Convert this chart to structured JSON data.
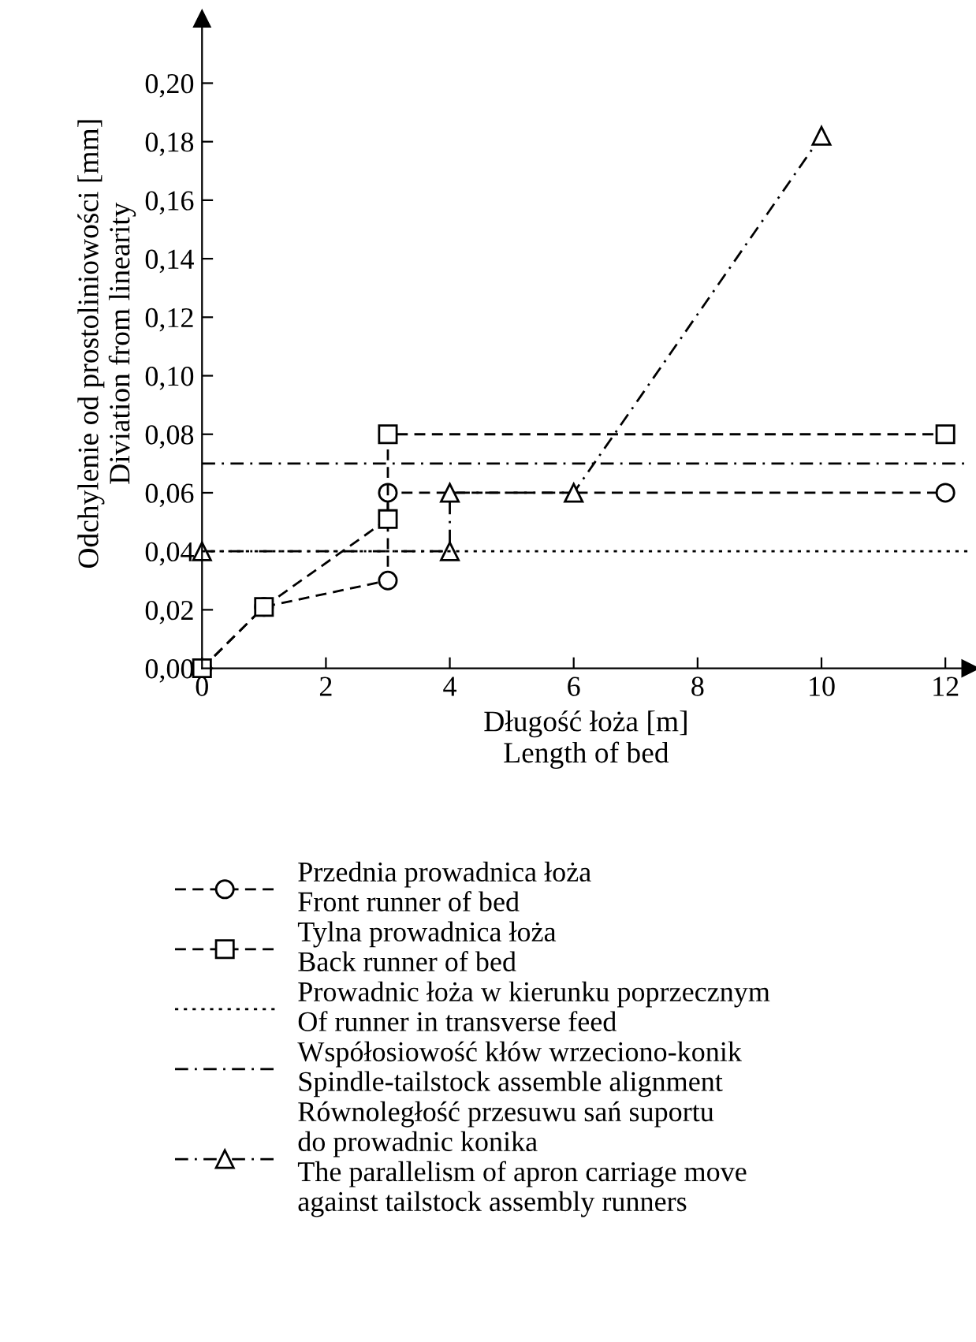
{
  "chart_data": {
    "type": "line",
    "xlabel": "Długość łoża [m]\nLength of bed",
    "ylabel": "Odchylenie od prostoliniowości [mm]\nDiviation from linearity",
    "xlim": [
      0,
      12.4
    ],
    "ylim": [
      0,
      0.222
    ],
    "xticks": [
      0,
      2,
      4,
      6,
      8,
      10,
      12
    ],
    "yticks": [
      {
        "value": 0,
        "label": "0,00"
      },
      {
        "value": 0.02,
        "label": "0,02"
      },
      {
        "value": 0.04,
        "label": "0,04"
      },
      {
        "value": 0.06,
        "label": "0,06"
      },
      {
        "value": 0.08,
        "label": "0,08"
      },
      {
        "value": 0.1,
        "label": "0,10"
      },
      {
        "value": 0.12,
        "label": "0,12"
      },
      {
        "value": 0.14,
        "label": "0,14"
      },
      {
        "value": 0.16,
        "label": "0,16"
      },
      {
        "value": 0.18,
        "label": "0,18"
      },
      {
        "value": 0.2,
        "label": "0,20"
      }
    ],
    "grid": false,
    "legend": "bottom",
    "ref_lines": [
      {
        "axis": "y",
        "value": 0.04,
        "label": "Prowadnic łoża w kierunku poprzecznym\nOf runner in transverse feed",
        "color": "#000000",
        "line_style": "dotted"
      },
      {
        "axis": "y",
        "value": 0.07,
        "label": "Współosiowość kłów wrzeciono-konik\nSpindle-tailstock assemble alignment",
        "color": "#000000",
        "line_style": "dashdot"
      }
    ],
    "series": [
      {
        "name": "Przednia prowadnica łoża\nFront runner of bed",
        "color": "#000000",
        "marker": "circle",
        "line_style": "dashed",
        "x": [
          0,
          1,
          3,
          3,
          12
        ],
        "values": [
          0,
          0.021,
          0.03,
          0.06,
          0.06
        ]
      },
      {
        "name": "Tylna prowadnica łoża\nBack runner of bed",
        "color": "#000000",
        "marker": "square",
        "line_style": "dashed",
        "x": [
          0,
          1,
          3,
          3,
          12
        ],
        "values": [
          0,
          0.021,
          0.051,
          0.08,
          0.08
        ]
      },
      {
        "name": "Równoległość przesuwu sań suportu\ndo prowadnic konika\nThe parallelism of apron carriage move\nagainst tailstock assembly runners",
        "color": "#000000",
        "marker": "triangle",
        "line_style": "dashdot",
        "x": [
          0,
          4,
          4,
          6,
          10
        ],
        "values": [
          0.04,
          0.04,
          0.06,
          0.06,
          0.182
        ]
      }
    ]
  }
}
